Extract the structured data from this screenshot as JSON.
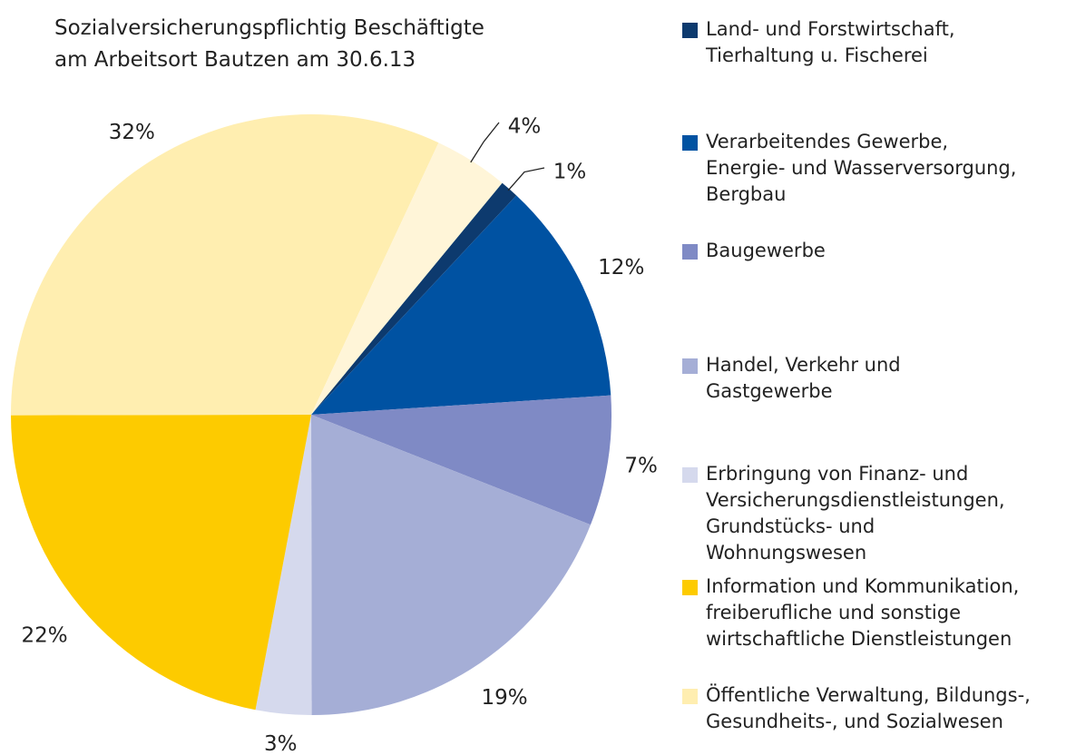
{
  "chart_data": {
    "type": "pie",
    "title": "Sozialversicherungspflichtig Beschäftigte\nam Arbeitsort Bautzen am 30.6.13",
    "categories": [
      "Land- und Forstwirtschaft,\nTierhaltung u. Fischerei",
      "Verarbeitendes Gewerbe,\nEnergie- und Wasserversorgung,\nBergbau",
      "Baugewerbe",
      "Handel, Verkehr und\nGastgewerbe",
      "Erbringung von Finanz- und\nVersicherungsdienstleistungen,\nGrundstücks- und\nWohnungswesen",
      "Information und Kommunikation,\nfreiberufliche und sonstige\nwirtschaftliche Dienstleistungen",
      "Öffentliche Verwaltung, Bildungs-,\nGesundheits-, und Sozialwesen",
      null
    ],
    "values": [
      1,
      12,
      7,
      19,
      3,
      22,
      32,
      4
    ],
    "value_labels": [
      "1%",
      "12%",
      "7%",
      "19%",
      "3%",
      "22%",
      "32%",
      "4%"
    ],
    "colors": [
      "#0d3a6e",
      "#0052a2",
      "#7f8ac5",
      "#a5aed6",
      "#d5d9ed",
      "#fdcb00",
      "#ffeeb0",
      "#fff5d8"
    ],
    "legend": "right"
  }
}
